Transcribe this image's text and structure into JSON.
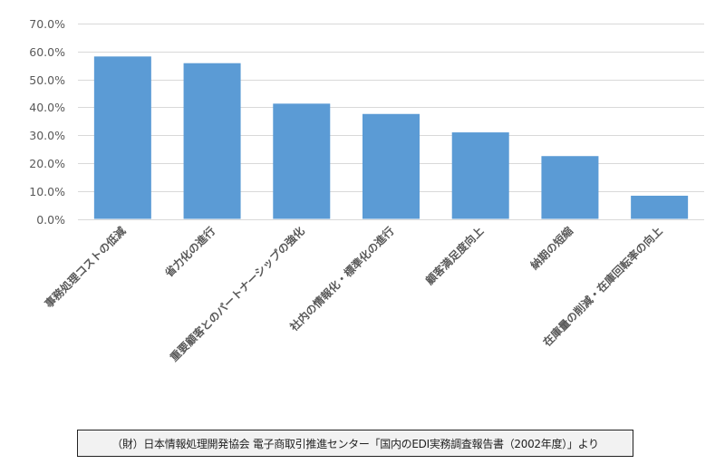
{
  "chart_data": {
    "type": "bar",
    "title": "",
    "xlabel": "",
    "ylabel": "",
    "categories": [
      "事務処理コストの低減",
      "省力化の進行",
      "重要顧客とのパートナーシップの強化",
      "社内の情報化・標準化の進行",
      "顧客満足度向上",
      "納期の短縮",
      "在庫量の削減・在庫回転率の向上"
    ],
    "values": [
      58.2,
      55.8,
      41.3,
      37.6,
      31.0,
      22.5,
      8.3
    ],
    "value_unit": "%",
    "ylim": [
      0,
      70
    ],
    "yticks": [
      0,
      10,
      20,
      30,
      40,
      50,
      60,
      70
    ],
    "ytick_labels": [
      "0.0%",
      "10.0%",
      "20.0%",
      "30.0%",
      "40.0%",
      "50.0%",
      "60.0%",
      "70.0%"
    ],
    "grid": true,
    "legend": null,
    "bar_color": "#5b9bd5",
    "grid_color": "#d9d9d9"
  },
  "source_note": "（財）日本情報処理開発協会 電子商取引推進センター「国内のEDI実務調査報告書（2002年度）」より"
}
